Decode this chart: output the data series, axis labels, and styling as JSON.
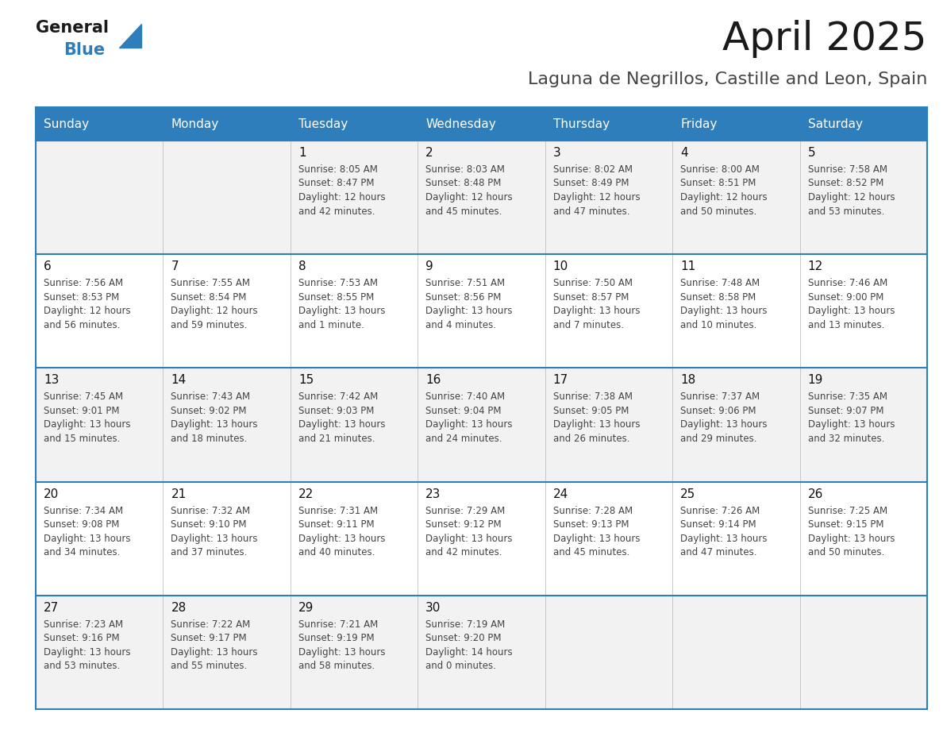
{
  "title": "April 2025",
  "subtitle": "Laguna de Negrillos, Castille and Leon, Spain",
  "days_of_week": [
    "Sunday",
    "Monday",
    "Tuesday",
    "Wednesday",
    "Thursday",
    "Friday",
    "Saturday"
  ],
  "header_bg": "#2e7ebb",
  "header_text": "#ffffff",
  "row_bg_odd": "#f2f2f2",
  "row_bg_even": "#ffffff",
  "cell_border_color": "#2e7ebb",
  "inner_border_color": "#c0c0c0",
  "day_number_color": "#111111",
  "text_color": "#444444",
  "calendar_data": [
    [
      null,
      null,
      {
        "day": "1",
        "sunrise": "8:05 AM",
        "sunset": "8:47 PM",
        "daylight": "12 hours",
        "daylight2": "and 42 minutes."
      },
      {
        "day": "2",
        "sunrise": "8:03 AM",
        "sunset": "8:48 PM",
        "daylight": "12 hours",
        "daylight2": "and 45 minutes."
      },
      {
        "day": "3",
        "sunrise": "8:02 AM",
        "sunset": "8:49 PM",
        "daylight": "12 hours",
        "daylight2": "and 47 minutes."
      },
      {
        "day": "4",
        "sunrise": "8:00 AM",
        "sunset": "8:51 PM",
        "daylight": "12 hours",
        "daylight2": "and 50 minutes."
      },
      {
        "day": "5",
        "sunrise": "7:58 AM",
        "sunset": "8:52 PM",
        "daylight": "12 hours",
        "daylight2": "and 53 minutes."
      }
    ],
    [
      {
        "day": "6",
        "sunrise": "7:56 AM",
        "sunset": "8:53 PM",
        "daylight": "12 hours",
        "daylight2": "and 56 minutes."
      },
      {
        "day": "7",
        "sunrise": "7:55 AM",
        "sunset": "8:54 PM",
        "daylight": "12 hours",
        "daylight2": "and 59 minutes."
      },
      {
        "day": "8",
        "sunrise": "7:53 AM",
        "sunset": "8:55 PM",
        "daylight": "13 hours",
        "daylight2": "and 1 minute."
      },
      {
        "day": "9",
        "sunrise": "7:51 AM",
        "sunset": "8:56 PM",
        "daylight": "13 hours",
        "daylight2": "and 4 minutes."
      },
      {
        "day": "10",
        "sunrise": "7:50 AM",
        "sunset": "8:57 PM",
        "daylight": "13 hours",
        "daylight2": "and 7 minutes."
      },
      {
        "day": "11",
        "sunrise": "7:48 AM",
        "sunset": "8:58 PM",
        "daylight": "13 hours",
        "daylight2": "and 10 minutes."
      },
      {
        "day": "12",
        "sunrise": "7:46 AM",
        "sunset": "9:00 PM",
        "daylight": "13 hours",
        "daylight2": "and 13 minutes."
      }
    ],
    [
      {
        "day": "13",
        "sunrise": "7:45 AM",
        "sunset": "9:01 PM",
        "daylight": "13 hours",
        "daylight2": "and 15 minutes."
      },
      {
        "day": "14",
        "sunrise": "7:43 AM",
        "sunset": "9:02 PM",
        "daylight": "13 hours",
        "daylight2": "and 18 minutes."
      },
      {
        "day": "15",
        "sunrise": "7:42 AM",
        "sunset": "9:03 PM",
        "daylight": "13 hours",
        "daylight2": "and 21 minutes."
      },
      {
        "day": "16",
        "sunrise": "7:40 AM",
        "sunset": "9:04 PM",
        "daylight": "13 hours",
        "daylight2": "and 24 minutes."
      },
      {
        "day": "17",
        "sunrise": "7:38 AM",
        "sunset": "9:05 PM",
        "daylight": "13 hours",
        "daylight2": "and 26 minutes."
      },
      {
        "day": "18",
        "sunrise": "7:37 AM",
        "sunset": "9:06 PM",
        "daylight": "13 hours",
        "daylight2": "and 29 minutes."
      },
      {
        "day": "19",
        "sunrise": "7:35 AM",
        "sunset": "9:07 PM",
        "daylight": "13 hours",
        "daylight2": "and 32 minutes."
      }
    ],
    [
      {
        "day": "20",
        "sunrise": "7:34 AM",
        "sunset": "9:08 PM",
        "daylight": "13 hours",
        "daylight2": "and 34 minutes."
      },
      {
        "day": "21",
        "sunrise": "7:32 AM",
        "sunset": "9:10 PM",
        "daylight": "13 hours",
        "daylight2": "and 37 minutes."
      },
      {
        "day": "22",
        "sunrise": "7:31 AM",
        "sunset": "9:11 PM",
        "daylight": "13 hours",
        "daylight2": "and 40 minutes."
      },
      {
        "day": "23",
        "sunrise": "7:29 AM",
        "sunset": "9:12 PM",
        "daylight": "13 hours",
        "daylight2": "and 42 minutes."
      },
      {
        "day": "24",
        "sunrise": "7:28 AM",
        "sunset": "9:13 PM",
        "daylight": "13 hours",
        "daylight2": "and 45 minutes."
      },
      {
        "day": "25",
        "sunrise": "7:26 AM",
        "sunset": "9:14 PM",
        "daylight": "13 hours",
        "daylight2": "and 47 minutes."
      },
      {
        "day": "26",
        "sunrise": "7:25 AM",
        "sunset": "9:15 PM",
        "daylight": "13 hours",
        "daylight2": "and 50 minutes."
      }
    ],
    [
      {
        "day": "27",
        "sunrise": "7:23 AM",
        "sunset": "9:16 PM",
        "daylight": "13 hours",
        "daylight2": "and 53 minutes."
      },
      {
        "day": "28",
        "sunrise": "7:22 AM",
        "sunset": "9:17 PM",
        "daylight": "13 hours",
        "daylight2": "and 55 minutes."
      },
      {
        "day": "29",
        "sunrise": "7:21 AM",
        "sunset": "9:19 PM",
        "daylight": "13 hours",
        "daylight2": "and 58 minutes."
      },
      {
        "day": "30",
        "sunrise": "7:19 AM",
        "sunset": "9:20 PM",
        "daylight": "14 hours",
        "daylight2": "and 0 minutes."
      },
      null,
      null,
      null
    ]
  ],
  "logo_color_general": "#1a1a1a",
  "logo_color_blue": "#2e7ebb"
}
